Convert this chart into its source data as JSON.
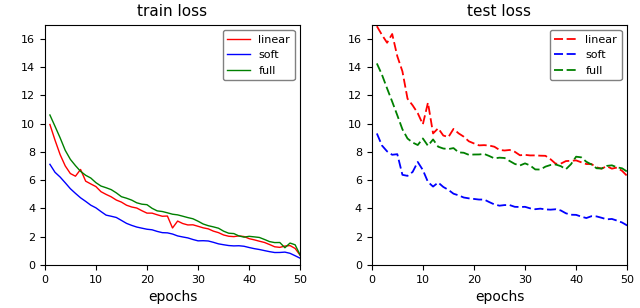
{
  "title_left": "train loss",
  "title_right": "test loss",
  "xlabel": "epochs",
  "legend_labels": [
    "linear",
    "soft",
    "full"
  ],
  "colors": [
    "red",
    "blue",
    "green"
  ],
  "ylim": [
    0,
    17
  ],
  "xlim": [
    0,
    50
  ],
  "yticks": [
    0,
    2,
    4,
    6,
    8,
    10,
    12,
    14,
    16
  ],
  "xticks": [
    0,
    10,
    20,
    30,
    40,
    50
  ],
  "train_linear": [
    9.8,
    8.8,
    7.8,
    7.0,
    6.5,
    6.3,
    6.8,
    6.0,
    5.7,
    5.5,
    5.2,
    5.0,
    4.8,
    4.6,
    4.5,
    4.3,
    4.1,
    4.0,
    3.85,
    3.7,
    3.6,
    3.5,
    3.4,
    3.35,
    2.6,
    3.2,
    3.05,
    2.95,
    2.85,
    2.75,
    2.65,
    2.55,
    2.45,
    2.35,
    2.25,
    2.15,
    2.05,
    1.95,
    1.87,
    1.8,
    1.73,
    1.65,
    1.58,
    1.52,
    1.45,
    1.38,
    1.3,
    1.22,
    1.1,
    0.7
  ],
  "train_soft": [
    7.0,
    6.5,
    6.2,
    5.8,
    5.4,
    5.1,
    4.8,
    4.5,
    4.2,
    4.0,
    3.8,
    3.6,
    3.45,
    3.3,
    3.15,
    3.0,
    2.88,
    2.75,
    2.65,
    2.55,
    2.45,
    2.35,
    2.25,
    2.18,
    2.1,
    2.02,
    1.95,
    1.88,
    1.82,
    1.76,
    1.7,
    1.64,
    1.58,
    1.52,
    1.46,
    1.4,
    1.34,
    1.28,
    1.22,
    1.16,
    1.1,
    1.05,
    1.0,
    0.95,
    0.9,
    0.85,
    0.8,
    0.75,
    0.65,
    0.5
  ],
  "train_full": [
    10.7,
    9.8,
    9.0,
    8.2,
    7.5,
    7.0,
    6.5,
    6.2,
    6.0,
    5.8,
    5.6,
    5.4,
    5.2,
    5.05,
    4.9,
    4.75,
    4.6,
    4.45,
    4.3,
    4.15,
    4.0,
    3.88,
    3.75,
    3.65,
    3.55,
    3.45,
    3.35,
    3.25,
    3.15,
    3.05,
    2.95,
    2.85,
    2.75,
    2.65,
    2.55,
    2.45,
    2.35,
    2.25,
    2.18,
    2.1,
    2.02,
    1.95,
    1.88,
    1.82,
    1.76,
    1.7,
    1.3,
    1.65,
    1.55,
    0.9
  ],
  "test_linear": [
    17.0,
    16.5,
    15.8,
    16.2,
    14.5,
    13.5,
    11.8,
    11.2,
    10.5,
    9.8,
    11.5,
    9.2,
    9.5,
    9.2,
    9.0,
    9.5,
    9.3,
    9.1,
    8.9,
    8.8,
    8.6,
    8.5,
    8.4,
    8.3,
    8.2,
    8.1,
    8.0,
    7.95,
    7.85,
    7.8,
    7.75,
    7.7,
    7.6,
    7.55,
    7.5,
    7.45,
    7.4,
    7.35,
    7.3,
    7.25,
    7.2,
    7.15,
    7.1,
    7.05,
    7.0,
    6.95,
    6.9,
    6.85,
    6.5,
    6.2
  ],
  "test_soft": [
    9.5,
    8.5,
    8.2,
    8.0,
    7.9,
    6.3,
    6.2,
    6.5,
    7.3,
    6.8,
    6.0,
    5.6,
    5.8,
    5.5,
    5.3,
    5.1,
    5.0,
    4.8,
    4.7,
    4.6,
    4.5,
    4.45,
    4.4,
    4.35,
    4.3,
    4.25,
    4.2,
    4.15,
    4.1,
    4.05,
    4.0,
    3.95,
    3.9,
    3.85,
    3.8,
    3.75,
    3.7,
    3.65,
    3.6,
    3.55,
    3.5,
    3.45,
    3.4,
    3.35,
    3.3,
    3.25,
    3.2,
    3.15,
    3.1,
    3.0
  ],
  "test_full": [
    14.3,
    13.5,
    12.5,
    11.5,
    10.5,
    9.5,
    9.0,
    8.8,
    8.5,
    8.8,
    8.2,
    8.8,
    8.5,
    8.2,
    8.0,
    8.2,
    8.0,
    7.95,
    7.8,
    7.75,
    7.7,
    7.65,
    7.6,
    7.55,
    7.5,
    7.45,
    7.4,
    7.35,
    7.3,
    7.25,
    7.2,
    7.15,
    7.1,
    7.05,
    7.0,
    7.05,
    7.0,
    6.95,
    7.3,
    7.6,
    7.5,
    7.2,
    7.0,
    6.9,
    6.85,
    6.8,
    6.75,
    6.7,
    6.65,
    6.6
  ]
}
